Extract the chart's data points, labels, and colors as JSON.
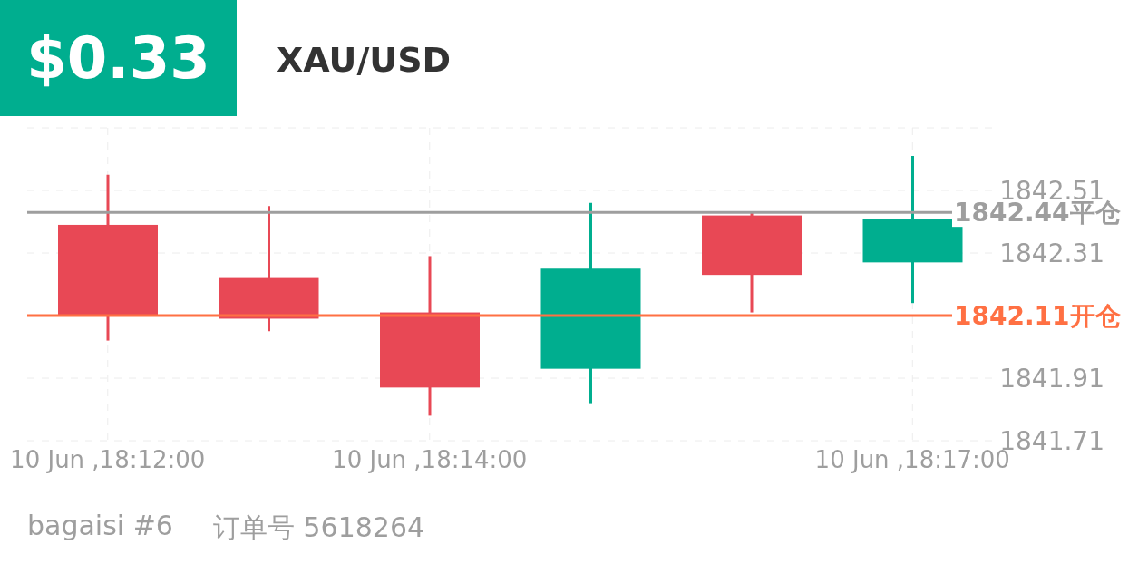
{
  "chart_data": {
    "type": "candlestick",
    "title": "XAU/USD",
    "subtitle": "$0.33",
    "categories": [
      "10 Jun ,18:12:00",
      null,
      "10 Jun ,18:14:00",
      null,
      null,
      "10 Jun ,18:17:00"
    ],
    "ohlc": [
      [
        1842.4,
        1842.56,
        1842.03,
        1842.11
      ],
      [
        1842.23,
        1842.46,
        1842.06,
        1842.1
      ],
      [
        1842.12,
        1842.3,
        1841.79,
        1841.88
      ],
      [
        1841.94,
        1842.47,
        1841.83,
        1842.26
      ],
      [
        1842.43,
        1842.44,
        1842.12,
        1842.24
      ],
      [
        1842.28,
        1842.62,
        1842.15,
        1842.42
      ]
    ],
    "colors": [
      "#e84855",
      "#e84855",
      "#e84855",
      "#00ae8f",
      "#e84855",
      "#00ae8f"
    ],
    "ylim": [
      1841.71,
      1842.71
    ],
    "yticks": [
      1841.71,
      1841.91,
      {
        "value": 1842.11,
        "label": null
      },
      1842.31,
      1842.51,
      {
        "value": 1842.71,
        "label": null
      }
    ],
    "grid": true,
    "ref_lines": [
      {
        "axis": "y",
        "value": 1842.44,
        "label": "1842.44平仓",
        "color": "#9e9e9e"
      },
      {
        "axis": "y",
        "value": 1842.11,
        "label": "1842.11开仓",
        "color": "#ff7043"
      }
    ],
    "annotations": [
      "bagaisi #6",
      "订单号 5618264"
    ]
  }
}
